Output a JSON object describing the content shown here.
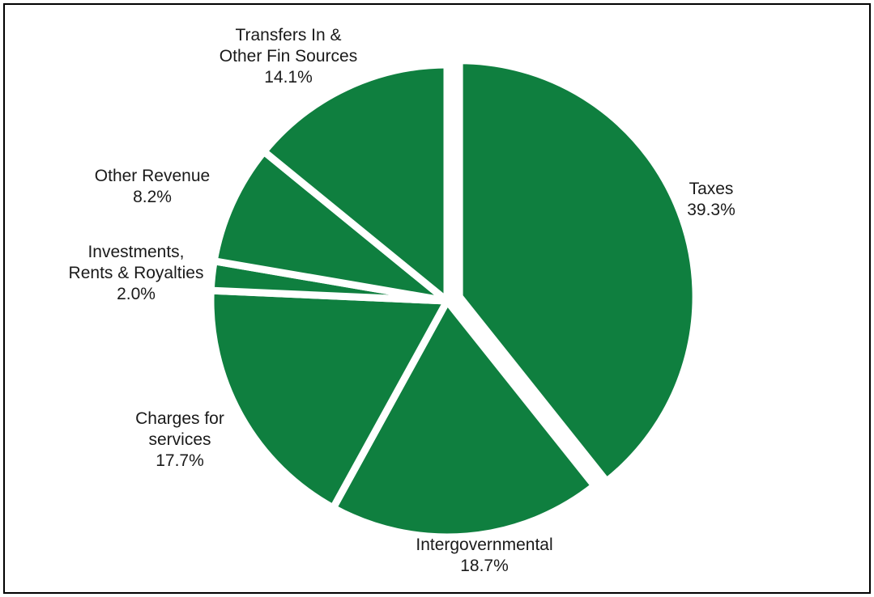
{
  "chart_data": {
    "type": "pie",
    "title": "",
    "slice_color": "#0f7f3f",
    "separator_color": "#ffffff",
    "start_angle_deg": 0,
    "direction": "clockwise",
    "slices": [
      {
        "label_lines": [
          "Taxes"
        ],
        "value": 39.3,
        "value_label": "39.3%",
        "exploded": true
      },
      {
        "label_lines": [
          "Intergovernmental"
        ],
        "value": 18.7,
        "value_label": "18.7%",
        "exploded": false
      },
      {
        "label_lines": [
          "Charges for",
          "services"
        ],
        "value": 17.7,
        "value_label": "17.7%",
        "exploded": false
      },
      {
        "label_lines": [
          "Investments,",
          "Rents & Royalties"
        ],
        "value": 2.0,
        "value_label": "2.0%",
        "exploded": false
      },
      {
        "label_lines": [
          "Other Revenue"
        ],
        "value": 8.2,
        "value_label": "8.2%",
        "exploded": false
      },
      {
        "label_lines": [
          "Transfers In &",
          "Other Fin Sources"
        ],
        "value": 14.1,
        "value_label": "14.1%",
        "exploded": false
      }
    ]
  }
}
